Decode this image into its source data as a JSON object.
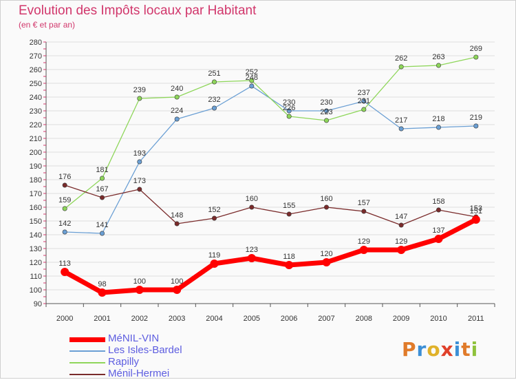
{
  "title": "Evolution des Impôts locaux par Habitant",
  "subtitle": "(en € et par an)",
  "brand": "Proxiti",
  "brand_colors": [
    "#e07b2a",
    "#3c8fd6",
    "#e0b22a",
    "#e0402a",
    "#3c8fd6",
    "#e07b2a",
    "#8fc23c"
  ],
  "colors": {
    "title": "#d1366b",
    "axis": "#555555",
    "grid": "#dddddd",
    "accent_ticks": "#d1366b",
    "legend_text": "#5d5de0"
  },
  "chart_data": {
    "type": "line",
    "title": "Evolution des Impôts locaux par Habitant",
    "subtitle": "(en € et par an)",
    "x": [
      "2000",
      "2001",
      "2002",
      "2003",
      "2004",
      "2005",
      "2006",
      "2007",
      "2008",
      "2009",
      "2010",
      "2011"
    ],
    "yticks": [
      90,
      100,
      110,
      120,
      130,
      140,
      150,
      160,
      170,
      180,
      190,
      200,
      210,
      220,
      230,
      240,
      250,
      260,
      270,
      280
    ],
    "ylim": [
      90,
      280
    ],
    "grid": true,
    "legend_position": "bottom-left",
    "series": [
      {
        "name": "MéNIL-VIN",
        "color": "#ff0000",
        "width": 7,
        "marker": 6,
        "values": [
          113,
          98,
          100,
          100,
          119,
          123,
          118,
          120,
          129,
          129,
          137,
          151
        ]
      },
      {
        "name": "Les Isles-Bardel",
        "color": "#6a9fd4",
        "width": 1.3,
        "marker": 3.2,
        "values": [
          142,
          141,
          193,
          224,
          232,
          248,
          230,
          230,
          237,
          217,
          218,
          219
        ]
      },
      {
        "name": "Rapilly",
        "color": "#8ed65a",
        "width": 1.3,
        "marker": 3.2,
        "values": [
          159,
          181,
          239,
          240,
          251,
          252,
          226,
          223,
          231,
          262,
          263,
          269
        ]
      },
      {
        "name": "Ménil-Hermei",
        "color": "#7a2b2b",
        "width": 1.3,
        "marker": 3.2,
        "values": [
          176,
          167,
          173,
          148,
          152,
          160,
          155,
          160,
          157,
          147,
          158,
          153
        ]
      }
    ]
  }
}
